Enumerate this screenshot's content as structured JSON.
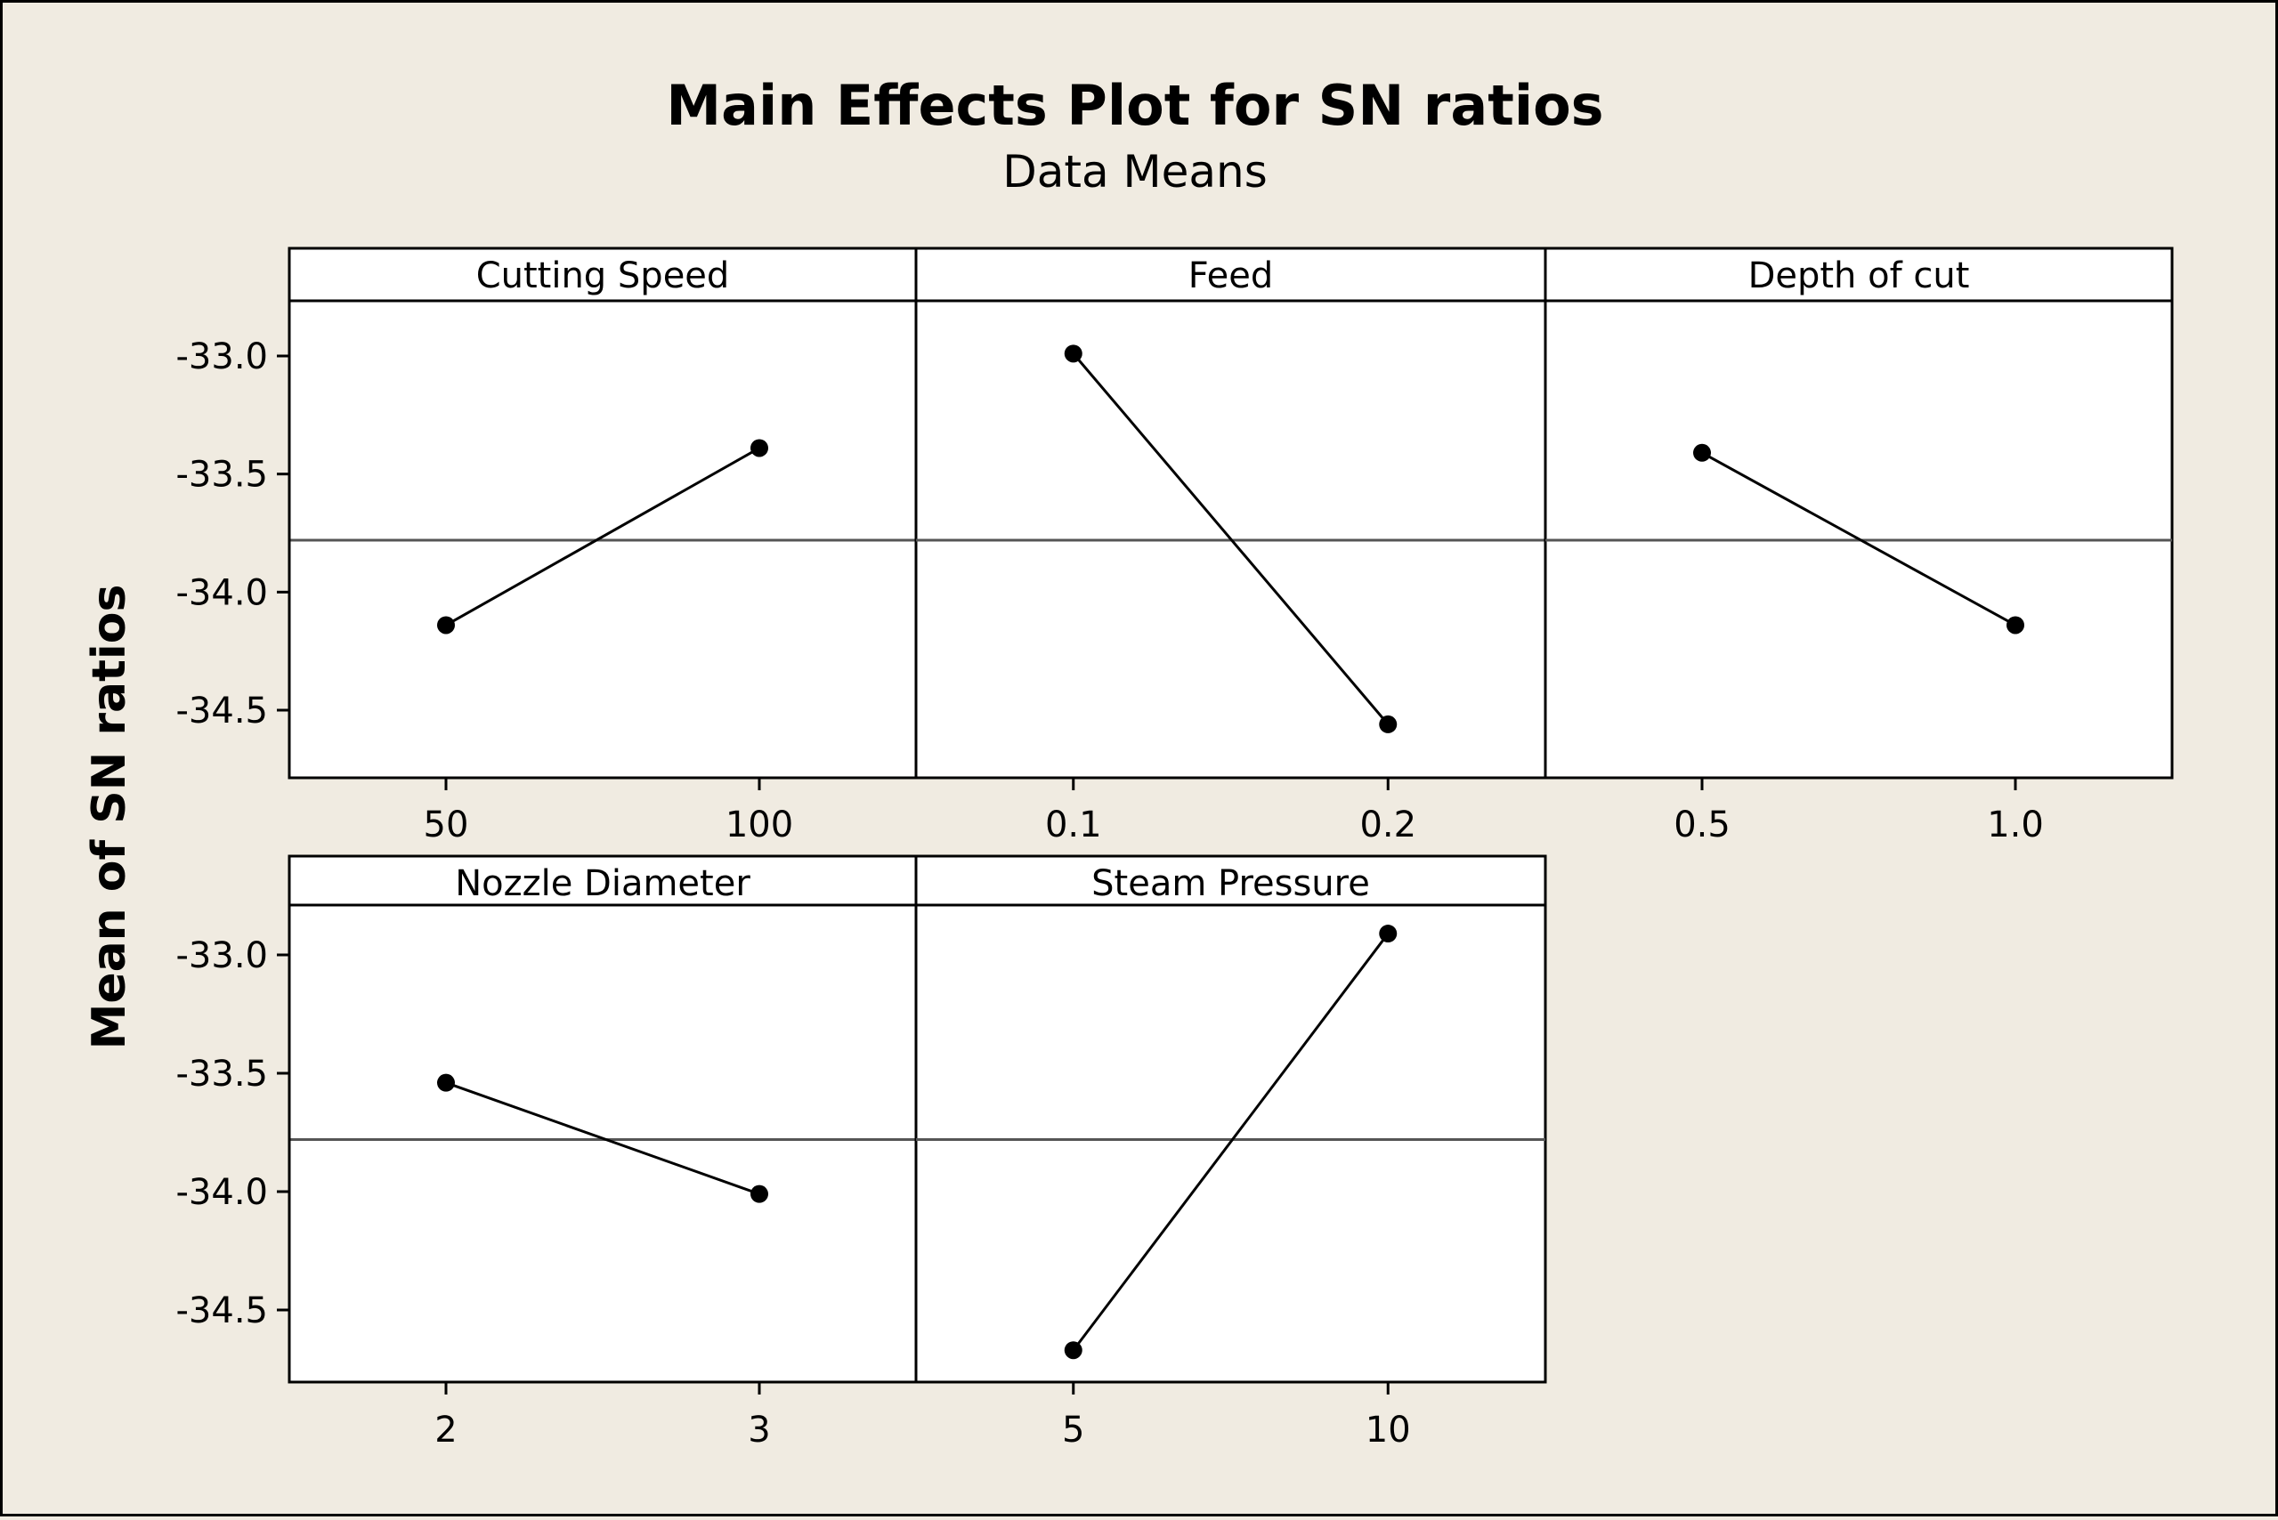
{
  "chart_data": {
    "type": "line",
    "title": "Main Effects Plot for SN ratios",
    "subtitle": "Data Means",
    "ylabel": "Mean of SN ratios",
    "ylim": [
      -34.8,
      -32.8
    ],
    "y_ticks": [
      "-33.0",
      "-33.5",
      "-34.0",
      "-34.5"
    ],
    "reference_mean": -33.78,
    "grid": false,
    "panels": [
      {
        "name": "Cutting Speed",
        "categories": [
          "50",
          "100"
        ],
        "values": [
          -34.14,
          -33.39
        ]
      },
      {
        "name": "Feed",
        "categories": [
          "0.1",
          "0.2"
        ],
        "values": [
          -32.99,
          -34.56
        ]
      },
      {
        "name": "Depth of cut",
        "categories": [
          "0.5",
          "1.0"
        ],
        "values": [
          -33.41,
          -34.14
        ]
      },
      {
        "name": "Nozzle Diameter",
        "categories": [
          "2",
          "3"
        ],
        "values": [
          -33.54,
          -34.01
        ]
      },
      {
        "name": "Steam Pressure",
        "categories": [
          "5",
          "10"
        ],
        "values": [
          -34.67,
          -32.91
        ]
      }
    ]
  }
}
